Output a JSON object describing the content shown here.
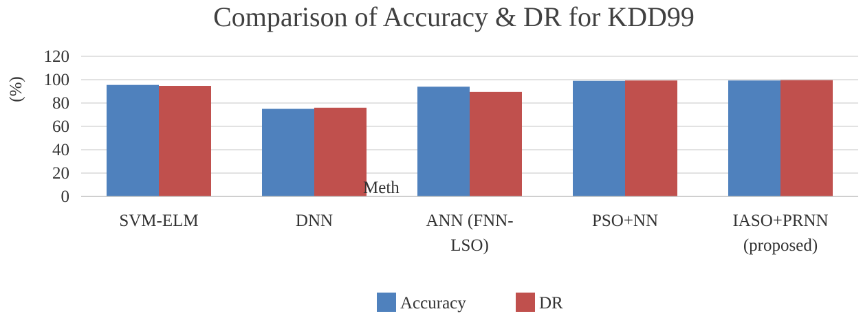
{
  "chart_data": {
    "type": "bar",
    "title": "Comparison of Accuracy & DR for KDD99",
    "ylabel": "(%)",
    "xlabel": "Meth",
    "ylim": [
      0,
      120
    ],
    "yticks": [
      0,
      20,
      40,
      60,
      80,
      100,
      120
    ],
    "grid": true,
    "legend": "bottom",
    "categories": [
      [
        "SVM-ELM"
      ],
      [
        "DNN"
      ],
      [
        "ANN (FNN-",
        "LSO)"
      ],
      [
        "PSO+NN"
      ],
      [
        "IASO+PRNN",
        "(proposed)"
      ]
    ],
    "series": [
      {
        "name": "Accuracy",
        "color": "#4f81bd",
        "values": [
          95.5,
          75,
          94,
          99,
          99.3
        ]
      },
      {
        "name": "DR",
        "color": "#c0504d",
        "values": [
          94.7,
          76,
          89.5,
          99.3,
          99.6
        ]
      }
    ]
  }
}
